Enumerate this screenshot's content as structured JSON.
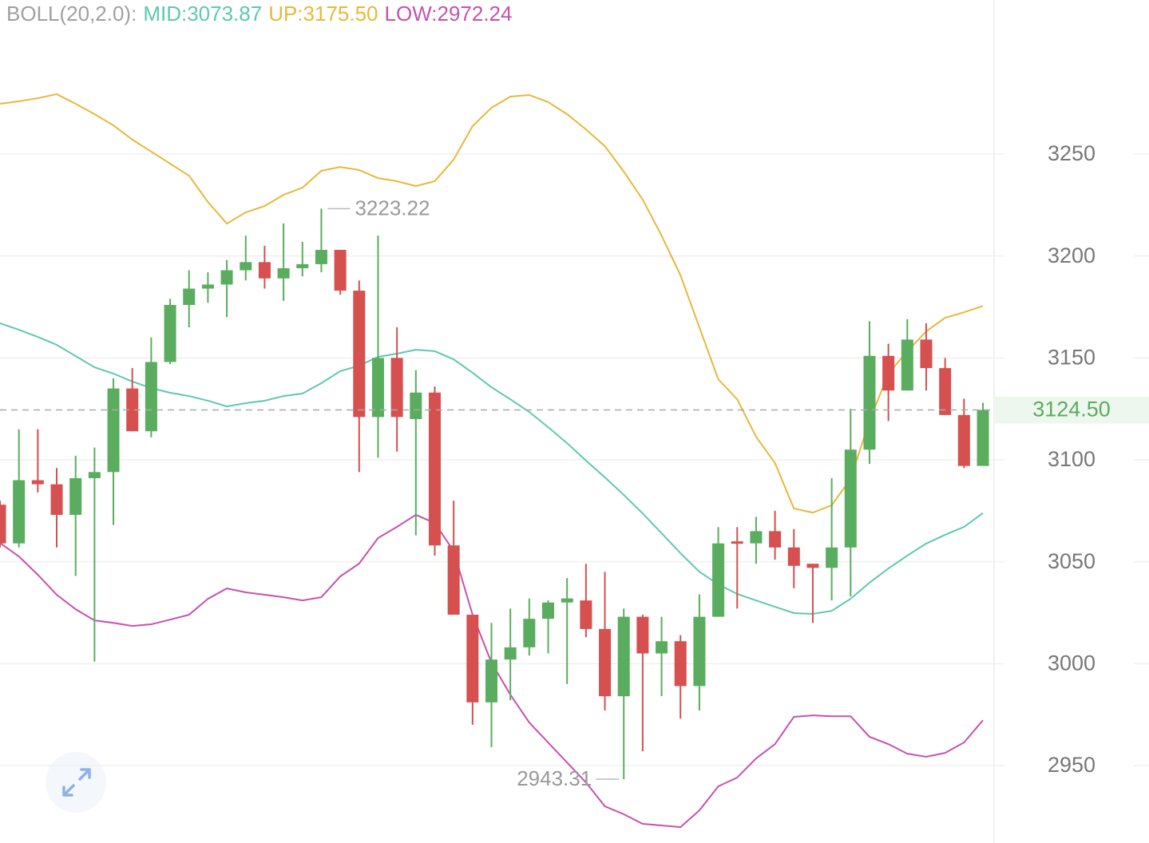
{
  "chart_data": {
    "type": "candlestick",
    "indicator": "BOLL(20,2.0):",
    "open": [
      3078,
      3059,
      3090,
      3088,
      3073,
      3091,
      3094,
      3135,
      3114,
      3148,
      3176,
      3184,
      3186,
      3193,
      3197,
      3189,
      3194,
      3196,
      3203,
      3183,
      3121,
      3150,
      3120,
      3133,
      3058,
      3024,
      2981,
      3002,
      3008,
      3022,
      3030,
      3031,
      3017,
      2984,
      3023,
      3005,
      3011,
      2989,
      3023,
      3060,
      3059,
      3065,
      3057,
      3049,
      3047,
      3057,
      3105,
      3151,
      3134,
      3159,
      3145,
      3122,
      3097
    ],
    "high": [
      3080,
      3115,
      3115,
      3096,
      3102,
      3106,
      3140,
      3145,
      3160,
      3179,
      3193,
      3192,
      3198,
      3210,
      3205,
      3216,
      3207,
      3223.22,
      3203,
      3188,
      3210,
      3165,
      3144,
      3136,
      3080,
      3024,
      3020,
      3027,
      3032,
      3031,
      3042,
      3049,
      3045,
      3027,
      3024,
      3023,
      3014,
      3034,
      3067,
      3067,
      3072,
      3075,
      3066,
      3049,
      3091,
      3125,
      3168,
      3157,
      3169,
      3167,
      3150,
      3130,
      3128
    ],
    "low": [
      3057,
      3057,
      3084,
      3057,
      3043,
      3001,
      3068,
      3114,
      3111,
      3147,
      3165,
      3177,
      3170,
      3188,
      3184,
      3178,
      3190,
      3192,
      3181,
      3094,
      3101,
      3104,
      3063,
      3053,
      3024,
      2970,
      2959,
      2982,
      3004,
      3005,
      2990,
      3013,
      2977,
      2943.31,
      2957,
      2984,
      2973,
      2977,
      3023,
      3027,
      3049,
      3051,
      3037,
      3020,
      3031,
      3033,
      3098,
      3119,
      3134,
      3134,
      3122,
      3096,
      3097
    ],
    "close": [
      3059,
      3090,
      3088,
      3073,
      3091,
      3094,
      3135,
      3114,
      3148,
      3176,
      3184,
      3186,
      3193,
      3197,
      3189,
      3194,
      3196,
      3203,
      3183,
      3121,
      3150,
      3121,
      3133,
      3058,
      3024,
      2981,
      3002,
      3008,
      3022,
      3030,
      3032,
      3017,
      2984,
      3023,
      3005,
      3011,
      2989,
      3023,
      3059,
      3059,
      3065,
      3057,
      3048,
      3047,
      3057,
      3105,
      3151,
      3134,
      3159,
      3145,
      3122,
      3097,
      3124.5
    ],
    "up_color": "#5aad5e",
    "down_color": "#d5504f",
    "series": [
      {
        "name": "MID:3073.87",
        "color": "#5ec8b0",
        "values": [
          3167.0,
          3163.8,
          3160.3,
          3156.4,
          3150.9,
          3145.4,
          3142.3,
          3138.4,
          3135.2,
          3132.9,
          3131.3,
          3129.0,
          3126.2,
          3127.8,
          3129.0,
          3131.3,
          3132.5,
          3137.6,
          3143.5,
          3146.2,
          3150.5,
          3152.1,
          3154.0,
          3153.3,
          3149.3,
          3142.7,
          3135.6,
          3129.7,
          3123.5,
          3116.0,
          3108.2,
          3099.6,
          3091.4,
          3082.8,
          3073.7,
          3064.0,
          3054.2,
          3045.1,
          3038.9,
          3034.2,
          3031.0,
          3027.9,
          3024.8,
          3024.4,
          3025.9,
          3031.8,
          3039.7,
          3046.7,
          3053.0,
          3058.9,
          3063.2,
          3067.1,
          3073.87
        ]
      },
      {
        "name": "UP:3175.50",
        "color": "#e6b93a",
        "values": [
          3274.7,
          3275.9,
          3277.4,
          3279.4,
          3274.7,
          3269.6,
          3264.1,
          3257.1,
          3251.2,
          3245.3,
          3239.4,
          3226.5,
          3215.9,
          3221.4,
          3224.5,
          3230.0,
          3233.5,
          3241.8,
          3243.7,
          3242.2,
          3238.2,
          3236.7,
          3234.3,
          3236.7,
          3247.3,
          3263.7,
          3272.7,
          3278.2,
          3279.0,
          3275.5,
          3269.6,
          3262.1,
          3253.9,
          3241.4,
          3227.7,
          3210.0,
          3190.5,
          3165.0,
          3139.5,
          3129.7,
          3111.3,
          3098.4,
          3076.1,
          3074.1,
          3077.7,
          3090.6,
          3119.2,
          3142.3,
          3153.3,
          3163.0,
          3169.7,
          3172.4,
          3175.5
        ]
      },
      {
        "name": "LOW:2972.24",
        "color": "#c552b0",
        "values": [
          3059.2,
          3052.6,
          3043.6,
          3033.8,
          3026.7,
          3021.2,
          3020.0,
          3018.5,
          3019.3,
          3021.6,
          3024.0,
          3031.8,
          3036.9,
          3035.0,
          3033.8,
          3032.6,
          3031.0,
          3032.6,
          3042.8,
          3049.1,
          3061.6,
          3067.1,
          3073.0,
          3069.0,
          3055.3,
          3024.0,
          3000.5,
          2984.8,
          2971.1,
          2961.3,
          2951.5,
          2941.7,
          2930.0,
          2926.1,
          2921.4,
          2920.6,
          2919.8,
          2928.0,
          2939.8,
          2944.1,
          2953.5,
          2960.5,
          2973.9,
          2974.6,
          2974.2,
          2974.2,
          2964.1,
          2960.5,
          2955.8,
          2954.3,
          2956.2,
          2961.3,
          2972.24
        ]
      }
    ],
    "ylim": [
      2912,
      3325.6
    ],
    "yticks": [
      2950,
      3000,
      3050,
      3100,
      3150,
      3200,
      3250
    ],
    "grid": true,
    "last_price": {
      "value": 3124.5,
      "label": "3124.50"
    },
    "max_annotation": 3223.22,
    "min_annotation": 2943.31
  }
}
